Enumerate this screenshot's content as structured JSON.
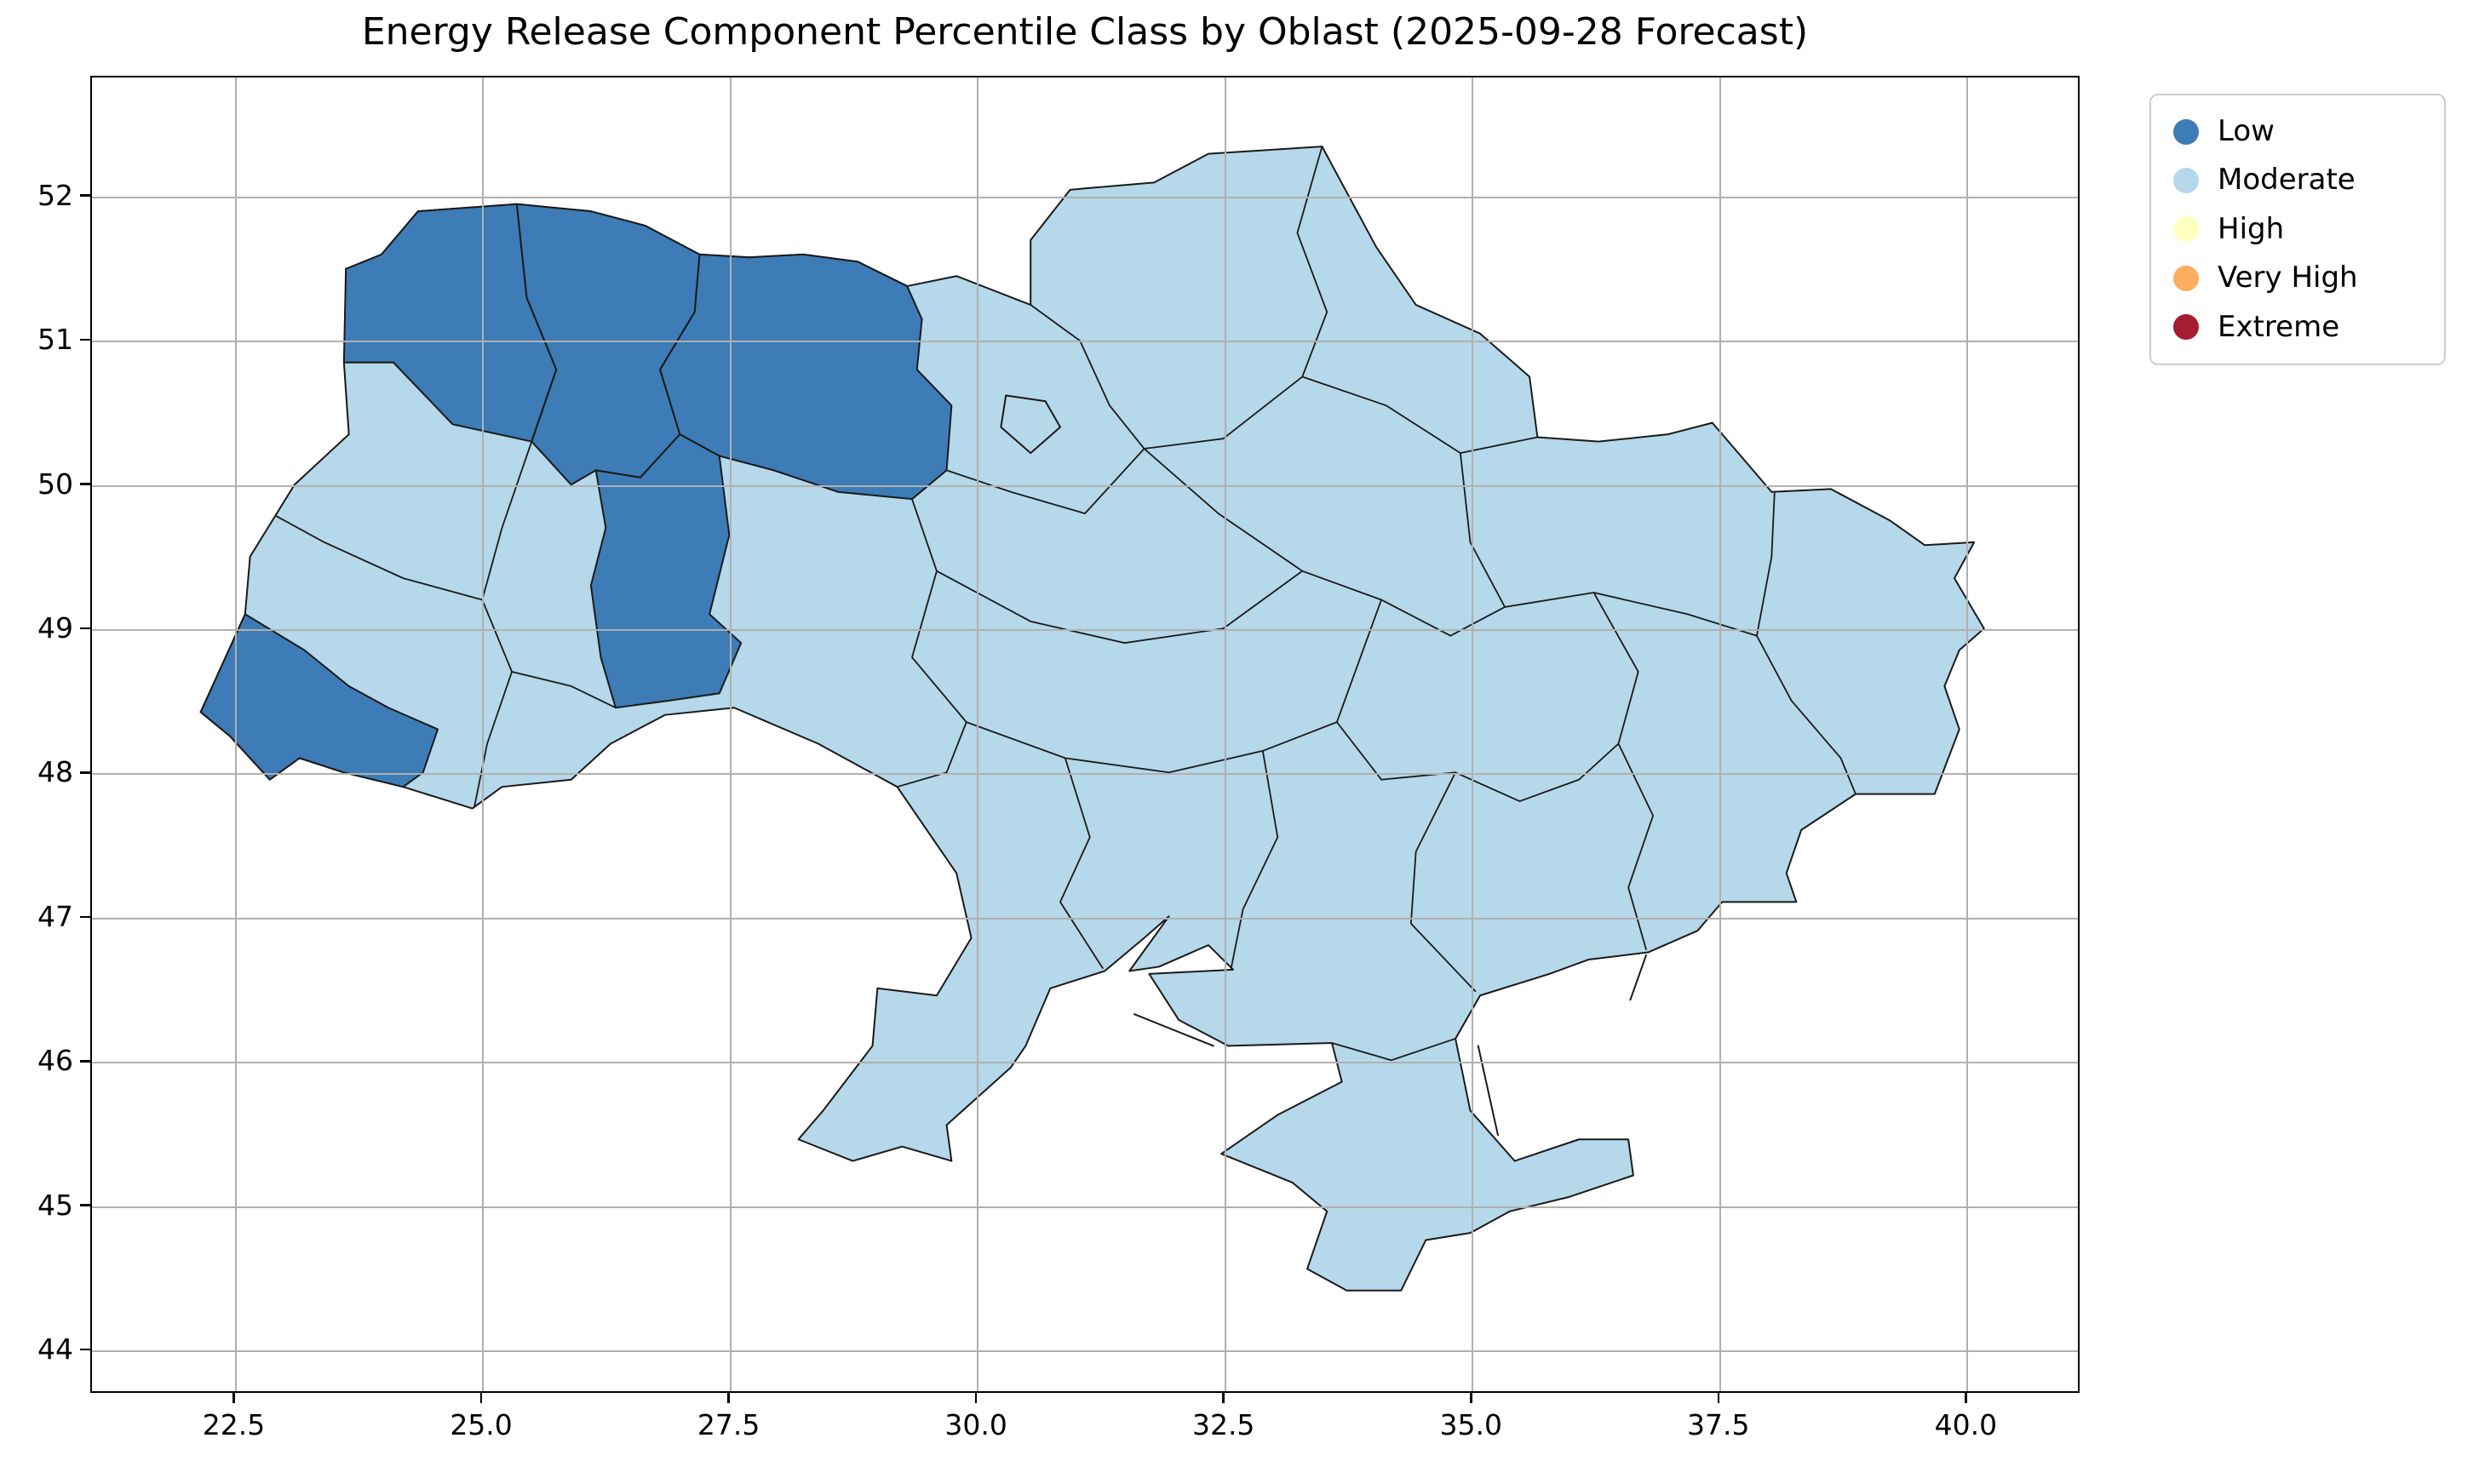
{
  "title": "Energy Release Component Percentile Class by Oblast (2025-09-28 Forecast)",
  "legend": {
    "items": [
      {
        "label": "Low",
        "color": "#3d7cb6"
      },
      {
        "label": "Moderate",
        "color": "#b5d8ea"
      },
      {
        "label": "High",
        "color": "#ffffbf"
      },
      {
        "label": "Very High",
        "color": "#fdae61"
      },
      {
        "label": "Extreme",
        "color": "#a61c33"
      }
    ]
  },
  "axes": {
    "x_ticks": [
      "22.5",
      "25.0",
      "27.5",
      "30.0",
      "32.5",
      "35.0",
      "37.5",
      "40.0"
    ],
    "y_ticks": [
      "44",
      "45",
      "46",
      "47",
      "48",
      "49",
      "50",
      "51",
      "52"
    ],
    "grid": true
  },
  "chart_data": {
    "type": "choropleth_map",
    "geography": "Ukraine oblasts",
    "title": "Energy Release Component Percentile Class by Oblast (2025-09-28 Forecast)",
    "forecast_date": "2025-09-28",
    "classes": [
      "Low",
      "Moderate",
      "High",
      "Very High",
      "Extreme"
    ],
    "class_colors": {
      "Low": "#3d7cb6",
      "Moderate": "#b5d8ea",
      "High": "#ffffbf",
      "Very High": "#fdae61",
      "Extreme": "#a61c33"
    },
    "oblast_classes": {
      "Volyn": "Low",
      "Rivne": "Low",
      "Zhytomyr": "Low",
      "Khmelnytskyi": "Low",
      "Zakarpattia": "Low",
      "Kyiv City": "Moderate",
      "all_other_oblasts": "Moderate"
    },
    "x_axis_range": [
      21.05,
      41.15
    ],
    "y_axis_range": [
      43.7,
      52.83
    ],
    "legend_position": "outside upper right",
    "grid": true
  }
}
